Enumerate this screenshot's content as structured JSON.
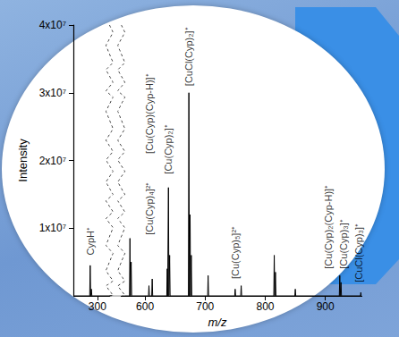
{
  "chart_data": {
    "type": "line",
    "xlabel": "m/z",
    "ylabel": "Intensity",
    "color": "#000000",
    "x": [
      260,
      287.2,
      288,
      288.8,
      289.2,
      290,
      290.8,
      560,
      574.2,
      575,
      575.8,
      576.2,
      577,
      577.8,
      605.8,
      606.6,
      607.4,
      611.2,
      612,
      612.8,
      636.2,
      637,
      637.6,
      638.2,
      639,
      639.8,
      640.2,
      641,
      641.8,
      672.2,
      673,
      673.8,
      674.2,
      675,
      675.8,
      676.2,
      677,
      677.8,
      704.2,
      705,
      705.8,
      749.2,
      750,
      750.8,
      759.2,
      760,
      760.8,
      814.2,
      815,
      815.8,
      816.2,
      817,
      817.8,
      849.2,
      850,
      850.8,
      923.2,
      924,
      924.6,
      925.2,
      926,
      926.8,
      958.4,
      959,
      959.6
    ],
    "values": [
      0,
      0,
      4500000,
      0,
      0,
      1000000,
      0,
      0,
      0,
      8500000,
      0,
      0,
      5000000,
      0,
      0,
      1500000,
      0,
      0,
      2500000,
      0,
      0,
      4000000,
      0,
      0,
      16000000,
      0,
      0,
      6000000,
      0,
      0,
      30000000,
      0,
      0,
      12000000,
      0,
      0,
      6000000,
      0,
      0,
      3000000,
      0,
      0,
      1000000,
      0,
      0,
      1500000,
      0,
      0,
      6000000,
      0,
      0,
      3500000,
      0,
      0,
      1000000,
      0,
      0,
      3000000,
      0,
      0,
      2000000,
      0,
      0,
      500000,
      0
    ],
    "xlim": [
      260,
      960
    ],
    "x_break": [
      320,
      560
    ],
    "xticks": [
      300,
      600,
      700,
      800,
      900
    ],
    "ylim": [
      0,
      40000000
    ],
    "yticks": [
      {
        "value": 10000000,
        "label": "1x10⁷"
      },
      {
        "value": 20000000,
        "label": "2x10⁷"
      },
      {
        "value": 30000000,
        "label": "3x10⁷"
      },
      {
        "value": 40000000,
        "label": "4x10⁷"
      }
    ],
    "grid": false,
    "annotations": [
      {
        "text": "CypH⁺",
        "x": 288,
        "y": 6000000
      },
      {
        "text": "[Cu(Cyp)₄]²⁺",
        "x": 606.6,
        "y": 9000000
      },
      {
        "text": "[Cu(Cyp)(Cyp-H)]⁺",
        "x": 606.6,
        "y": 21000000
      },
      {
        "text": "[Cu(Cyp)₂]⁺",
        "x": 639,
        "y": 18000000
      },
      {
        "text": "[CuCl(Cyp)₂]⁺",
        "x": 673,
        "y": 31000000
      },
      {
        "text": "[Cu(Cyp)₅]²⁺",
        "x": 750,
        "y": 2500000
      },
      {
        "text": "[Cu(Cyp)₂(Cyp-H)]⁺",
        "x": 905,
        "y": 4000000
      },
      {
        "text": "[Cu(Cyp)₃]⁺",
        "x": 930,
        "y": 4000000
      },
      {
        "text": "[CuCl(Cyp)₃]⁺",
        "x": 955,
        "y": 2000000
      }
    ]
  }
}
